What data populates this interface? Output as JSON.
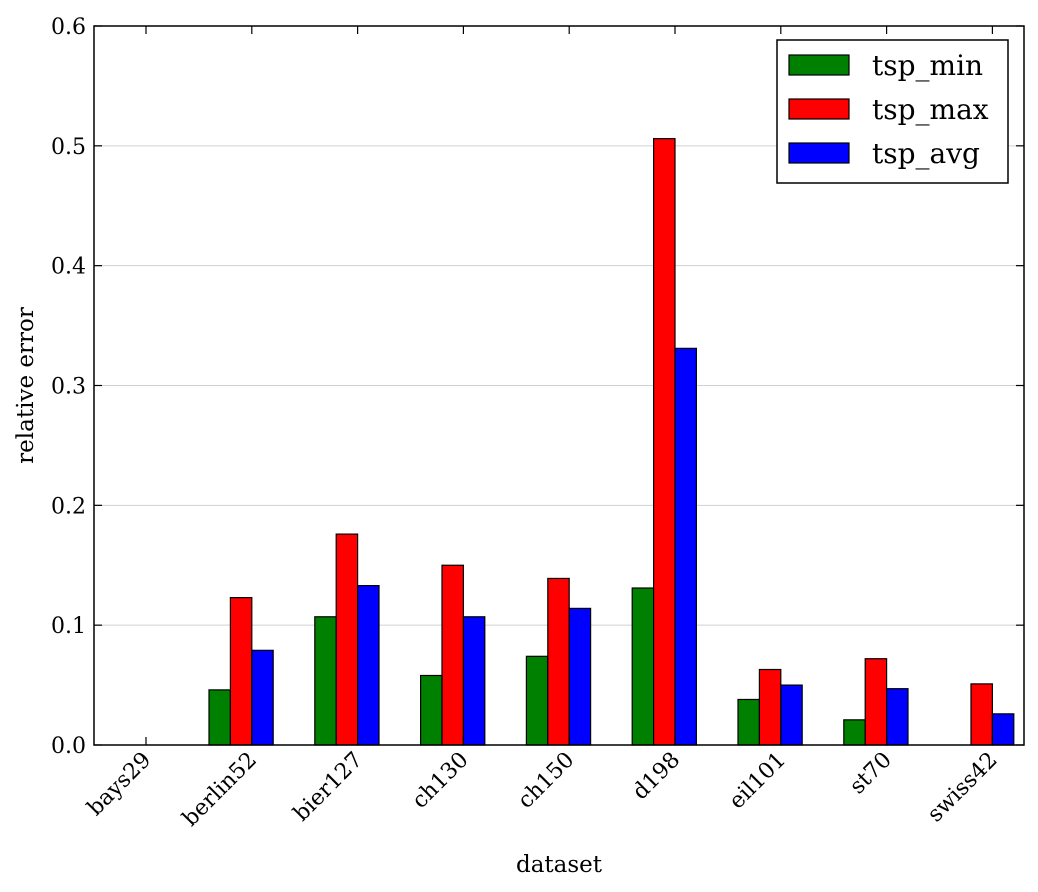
{
  "chart_data": {
    "type": "bar",
    "title": "",
    "xlabel": "dataset",
    "ylabel": "relative error",
    "ylim": [
      0,
      0.6
    ],
    "yticks": [
      "0.0",
      "0.1",
      "0.2",
      "0.3",
      "0.4",
      "0.5",
      "0.6"
    ],
    "grid": "horizontal",
    "legend_position": "top-right",
    "categories": [
      "bays29",
      "berlin52",
      "bier127",
      "ch130",
      "ch150",
      "d198",
      "eil101",
      "st70",
      "swiss42"
    ],
    "series": [
      {
        "name": "tsp_min",
        "color": "#008000",
        "values": [
          0.0,
          0.046,
          0.107,
          0.058,
          0.074,
          0.131,
          0.038,
          0.021,
          0.0
        ]
      },
      {
        "name": "tsp_max",
        "color": "#ff0000",
        "values": [
          0.0,
          0.123,
          0.176,
          0.15,
          0.139,
          0.506,
          0.063,
          0.072,
          0.051
        ]
      },
      {
        "name": "tsp_avg",
        "color": "#0000ff",
        "values": [
          0.0,
          0.079,
          0.133,
          0.107,
          0.114,
          0.331,
          0.05,
          0.047,
          0.026
        ]
      }
    ]
  }
}
